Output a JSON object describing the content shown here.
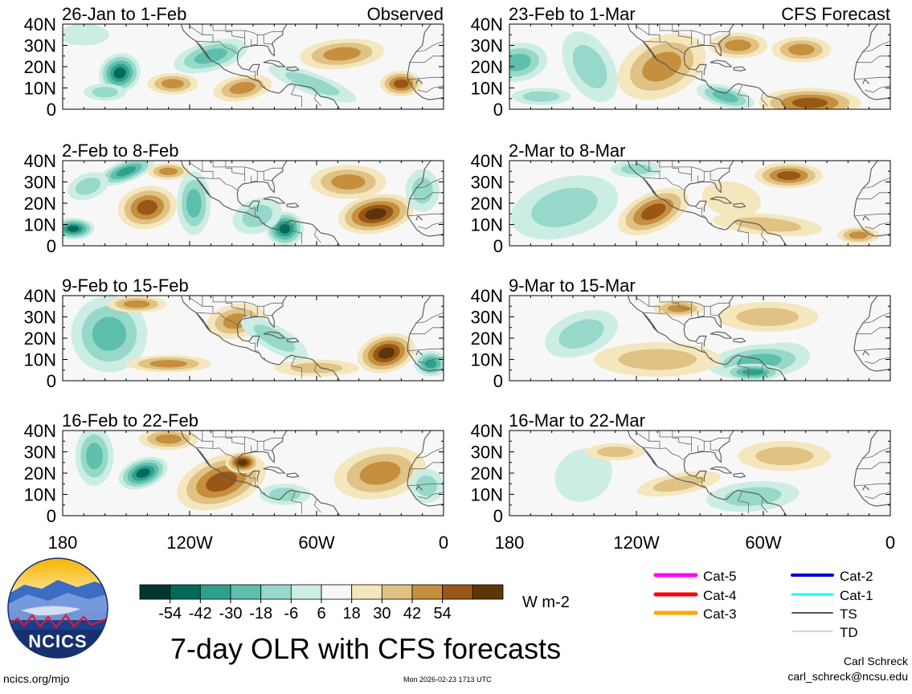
{
  "chart_data": {
    "type": "heatmap",
    "title": "7-day OLR with CFS forecasts",
    "variable": "OLR anomaly",
    "units": "W m-2",
    "region": "Tropical Atlantic and East Pacific, 0-40N, 180-0",
    "y_ticks": [
      "40N",
      "30N",
      "20N",
      "10N",
      "0"
    ],
    "ylim": [
      0,
      40
    ],
    "x_ticks": [
      "180",
      "120W",
      "60W",
      "0"
    ],
    "xlim": [
      -180,
      0
    ],
    "columns": [
      {
        "name": "Observed",
        "label": "Observed"
      },
      {
        "name": "CFS Forecast",
        "label": "CFS Forecast"
      }
    ],
    "panels": [
      {
        "label": "26-Jan to 1-Feb",
        "source": "Observed"
      },
      {
        "label": "2-Feb to 8-Feb",
        "source": "Observed"
      },
      {
        "label": "9-Feb to 15-Feb",
        "source": "Observed"
      },
      {
        "label": "16-Feb to 22-Feb",
        "source": "Observed"
      },
      {
        "label": "23-Feb to 1-Mar",
        "source": "CFS Forecast"
      },
      {
        "label": "2-Mar to 8-Mar",
        "source": "CFS Forecast"
      },
      {
        "label": "9-Mar to 15-Mar",
        "source": "CFS Forecast"
      },
      {
        "label": "16-Mar to 22-Mar",
        "source": "CFS Forecast"
      }
    ],
    "colorbar": {
      "tick_labels": [
        "-54",
        "-42",
        "-30",
        "-18",
        "-6",
        "6",
        "18",
        "30",
        "42",
        "54"
      ],
      "colors": [
        "#00382e",
        "#036a5a",
        "#2fa08d",
        "#5ebfac",
        "#96d8c9",
        "#ccede4",
        "#f7f7f7",
        "#f4e6bd",
        "#dfc284",
        "#c58f3e",
        "#985716",
        "#5d3608"
      ]
    },
    "legend": [
      {
        "label": "Cat-5",
        "color": "#ff00ff"
      },
      {
        "label": "Cat-4",
        "color": "#ff0000"
      },
      {
        "label": "Cat-3",
        "color": "#ffa500"
      },
      {
        "label": "Cat-2",
        "color": "#0000cc"
      },
      {
        "label": "Cat-1",
        "color": "#00ffff"
      },
      {
        "label": "TS",
        "color": "#555555"
      },
      {
        "label": "TD",
        "color": "#aaaaaa"
      }
    ]
  },
  "logo": {
    "text": "NCICS"
  },
  "footer": {
    "url": "ncics.org/mjo",
    "timestamp": "Mon 2026-02-23 1713 UTC",
    "author": "Carl Schreck",
    "email": "carl_schreck@ncsu.edu"
  }
}
